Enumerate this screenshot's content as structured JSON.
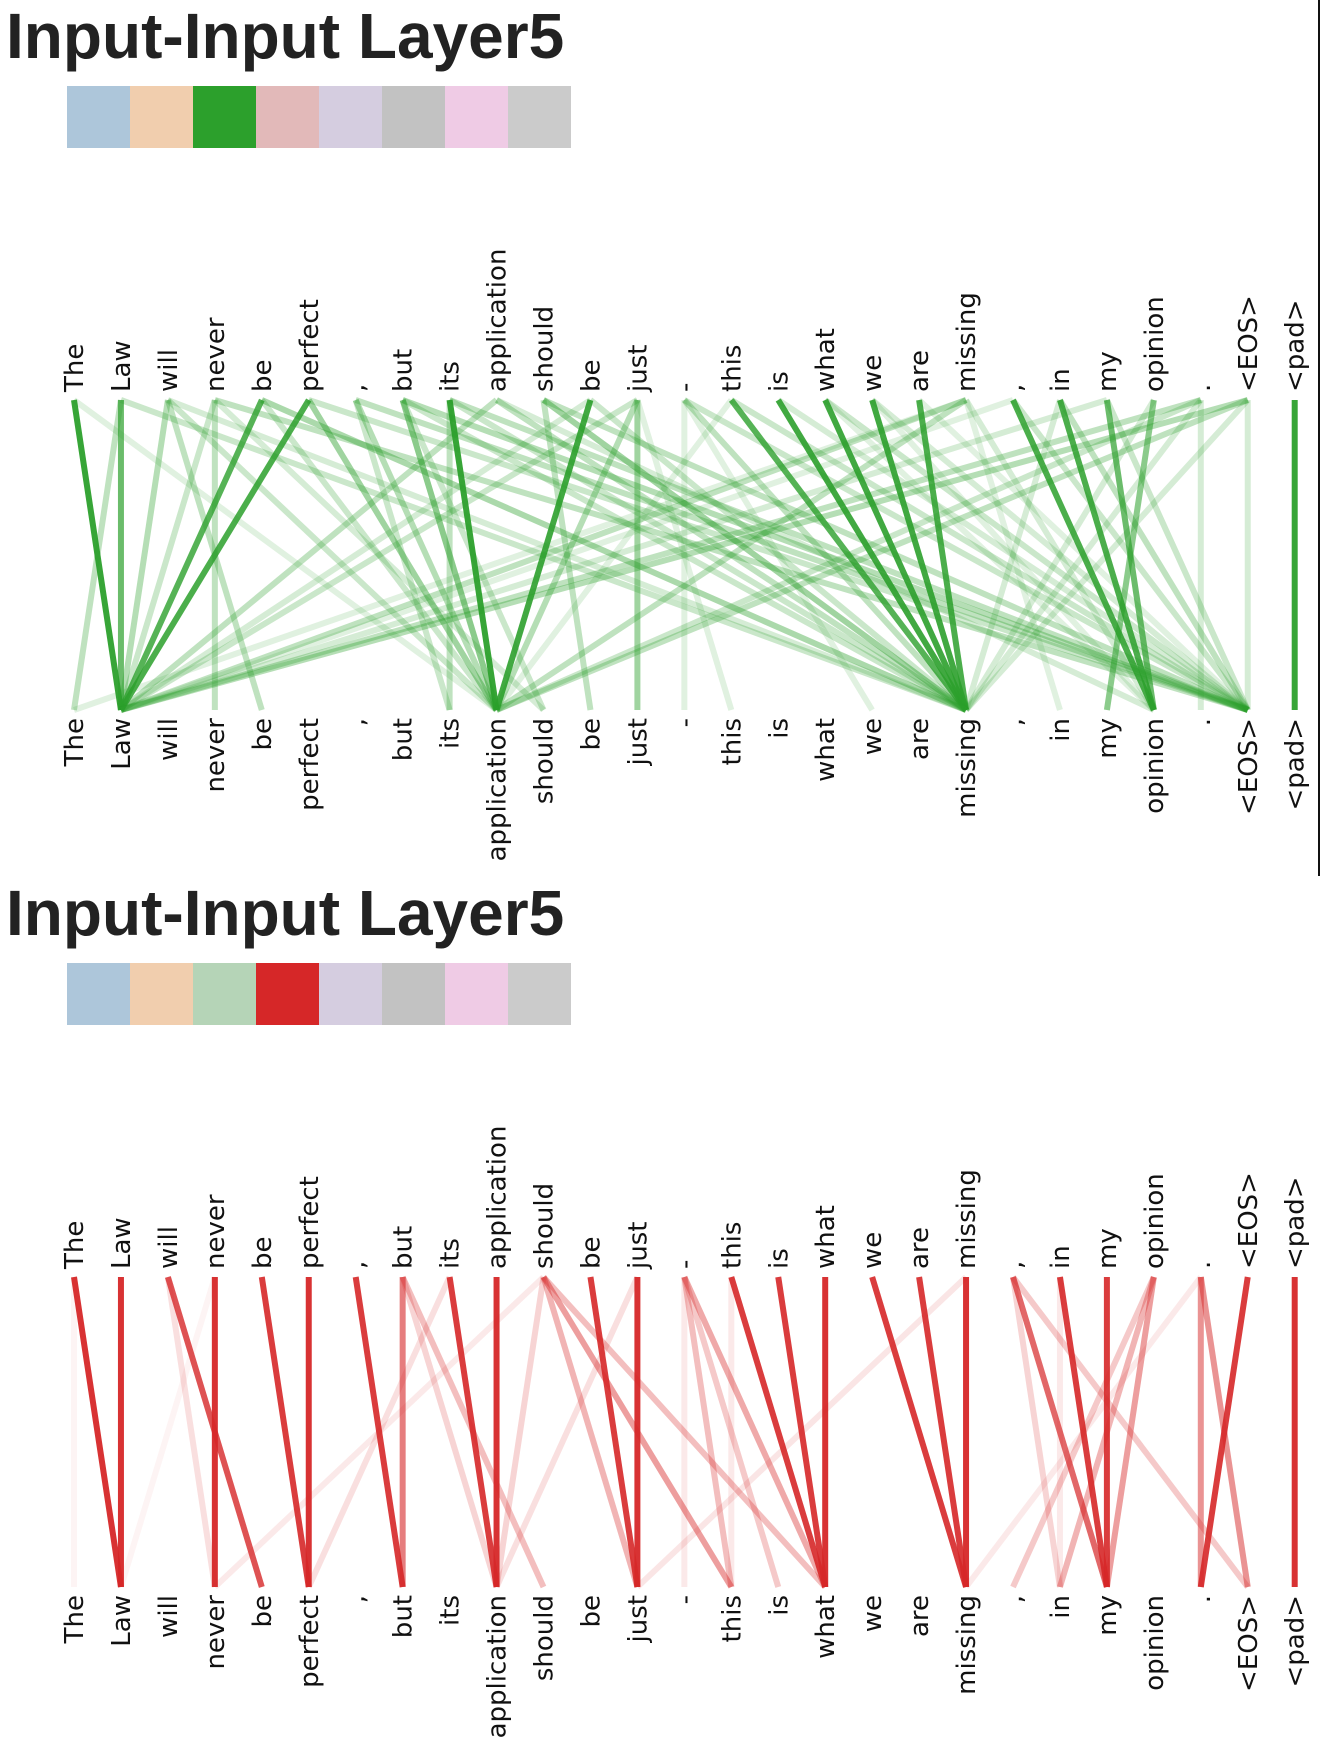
{
  "panels": [
    {
      "title": "Input-Input Layer5",
      "swatches": [
        "#adc6da",
        "#f1ceae",
        "#2ca02c",
        "#e2b9b9",
        "#d5cde0",
        "#c2c2c2",
        "#efcbe5",
        "#cbcbcb"
      ],
      "line_color": "#2ca02c",
      "tokens": [
        "The",
        "Law",
        "will",
        "never",
        "be",
        "perfect",
        ",",
        "but",
        "its",
        "application",
        "should",
        "be",
        "just",
        "-",
        "this",
        "is",
        "what",
        "we",
        "are",
        "missing",
        ",",
        "in",
        "my",
        "opinion",
        ".",
        "<EOS>",
        "<pad>"
      ],
      "links": [
        [
          0,
          1,
          0.95
        ],
        [
          1,
          1,
          0.7
        ],
        [
          4,
          1,
          0.8
        ],
        [
          5,
          1,
          0.85
        ],
        [
          8,
          9,
          0.95
        ],
        [
          11,
          9,
          0.9
        ],
        [
          14,
          19,
          0.8
        ],
        [
          15,
          19,
          0.9
        ],
        [
          16,
          19,
          0.9
        ],
        [
          17,
          19,
          0.9
        ],
        [
          18,
          19,
          0.85
        ],
        [
          20,
          23,
          0.85
        ],
        [
          21,
          23,
          0.85
        ],
        [
          22,
          23,
          0.7
        ],
        [
          23,
          22,
          0.55
        ],
        [
          26,
          26,
          0.95
        ],
        [
          2,
          1,
          0.35
        ],
        [
          3,
          1,
          0.25
        ],
        [
          2,
          9,
          0.25
        ],
        [
          4,
          19,
          0.4
        ],
        [
          5,
          9,
          0.45
        ],
        [
          7,
          9,
          0.55
        ],
        [
          7,
          25,
          0.35
        ],
        [
          8,
          25,
          0.3
        ],
        [
          9,
          1,
          0.3
        ],
        [
          9,
          19,
          0.3
        ],
        [
          10,
          19,
          0.45
        ],
        [
          12,
          12,
          0.45
        ],
        [
          12,
          9,
          0.35
        ],
        [
          13,
          19,
          0.3
        ],
        [
          13,
          25,
          0.25
        ],
        [
          19,
          1,
          0.3
        ],
        [
          19,
          9,
          0.3
        ],
        [
          24,
          1,
          0.3
        ],
        [
          25,
          1,
          0.35
        ],
        [
          25,
          9,
          0.3
        ],
        [
          24,
          9,
          0.25
        ],
        [
          3,
          25,
          0.3
        ],
        [
          6,
          25,
          0.3
        ],
        [
          6,
          9,
          0.35
        ],
        [
          10,
          25,
          0.3
        ],
        [
          8,
          19,
          0.25
        ],
        [
          11,
          19,
          0.25
        ],
        [
          2,
          4,
          0.3
        ],
        [
          3,
          3,
          0.3
        ],
        [
          5,
          25,
          0.25
        ],
        [
          4,
          9,
          0.25
        ],
        [
          1,
          0,
          0.3
        ],
        [
          0,
          9,
          0.15
        ],
        [
          1,
          19,
          0.25
        ],
        [
          12,
          1,
          0.25
        ],
        [
          13,
          13,
          0.15
        ],
        [
          14,
          25,
          0.25
        ],
        [
          15,
          25,
          0.2
        ],
        [
          16,
          25,
          0.25
        ],
        [
          17,
          25,
          0.2
        ],
        [
          18,
          25,
          0.15
        ],
        [
          20,
          25,
          0.25
        ],
        [
          21,
          25,
          0.3
        ],
        [
          22,
          25,
          0.25
        ],
        [
          24,
          24,
          0.2
        ],
        [
          25,
          25,
          0.2
        ],
        [
          12,
          14,
          0.15
        ],
        [
          13,
          17,
          0.15
        ],
        [
          19,
          21,
          0.15
        ],
        [
          19,
          0,
          0.15
        ],
        [
          7,
          10,
          0.25
        ],
        [
          6,
          8,
          0.25
        ],
        [
          8,
          8,
          0.3
        ],
        [
          10,
          11,
          0.3
        ],
        [
          14,
          9,
          0.15
        ],
        [
          22,
          1,
          0.2
        ],
        [
          24,
          19,
          0.2
        ],
        [
          25,
          19,
          0.2
        ],
        [
          19,
          23,
          0.2
        ],
        [
          23,
          19,
          0.2
        ],
        [
          3,
          10,
          0.2
        ],
        [
          7,
          19,
          0.25
        ],
        [
          2,
          19,
          0.2
        ],
        [
          9,
          23,
          0.2
        ],
        [
          11,
          1,
          0.2
        ],
        [
          21,
          19,
          0.2
        ],
        [
          20,
          1,
          0.15
        ],
        [
          16,
          23,
          0.15
        ],
        [
          17,
          23,
          0.15
        ]
      ]
    },
    {
      "title": "Input-Input Layer5",
      "swatches": [
        "#adc6da",
        "#f1ceae",
        "#b5d4b7",
        "#d62728",
        "#d5cde0",
        "#c2c2c2",
        "#efcbe5",
        "#cbcbcb"
      ],
      "line_color": "#d62728",
      "tokens": [
        "The",
        "Law",
        "will",
        "never",
        "be",
        "perfect",
        ",",
        "but",
        "its",
        "application",
        "should",
        "be",
        "just",
        "-",
        "this",
        "is",
        "what",
        "we",
        "are",
        "missing",
        ",",
        "in",
        "my",
        "opinion",
        ".",
        "<EOS>",
        "<pad>"
      ],
      "links": [
        [
          0,
          1,
          0.95
        ],
        [
          1,
          1,
          0.95
        ],
        [
          2,
          4,
          0.8
        ],
        [
          3,
          3,
          0.95
        ],
        [
          4,
          5,
          0.9
        ],
        [
          5,
          5,
          0.95
        ],
        [
          6,
          7,
          0.9
        ],
        [
          7,
          7,
          0.6
        ],
        [
          8,
          9,
          0.9
        ],
        [
          9,
          9,
          0.95
        ],
        [
          10,
          14,
          0.45
        ],
        [
          11,
          12,
          0.9
        ],
        [
          12,
          12,
          0.95
        ],
        [
          13,
          16,
          0.4
        ],
        [
          14,
          16,
          0.9
        ],
        [
          15,
          16,
          0.9
        ],
        [
          16,
          16,
          0.95
        ],
        [
          17,
          19,
          0.9
        ],
        [
          18,
          19,
          0.9
        ],
        [
          19,
          19,
          0.95
        ],
        [
          20,
          22,
          0.7
        ],
        [
          21,
          22,
          0.9
        ],
        [
          22,
          22,
          0.9
        ],
        [
          23,
          22,
          0.45
        ],
        [
          24,
          24,
          0.5
        ],
        [
          24,
          25,
          0.5
        ],
        [
          25,
          24,
          0.9
        ],
        [
          26,
          26,
          0.95
        ],
        [
          23,
          21,
          0.35
        ],
        [
          23,
          20,
          0.25
        ],
        [
          10,
          12,
          0.35
        ],
        [
          10,
          16,
          0.3
        ],
        [
          7,
          10,
          0.3
        ],
        [
          7,
          9,
          0.2
        ],
        [
          13,
          14,
          0.3
        ],
        [
          13,
          15,
          0.25
        ],
        [
          8,
          5,
          0.15
        ],
        [
          10,
          9,
          0.2
        ],
        [
          20,
          25,
          0.25
        ],
        [
          20,
          21,
          0.2
        ],
        [
          2,
          3,
          0.15
        ],
        [
          12,
          9,
          0.15
        ],
        [
          10,
          3,
          0.1
        ],
        [
          19,
          12,
          0.12
        ],
        [
          3,
          1,
          0.05
        ],
        [
          0,
          0,
          0.05
        ],
        [
          13,
          13,
          0.1
        ],
        [
          24,
          19,
          0.1
        ],
        [
          21,
          21,
          0.1
        ],
        [
          14,
          14,
          0.1
        ]
      ]
    }
  ]
}
